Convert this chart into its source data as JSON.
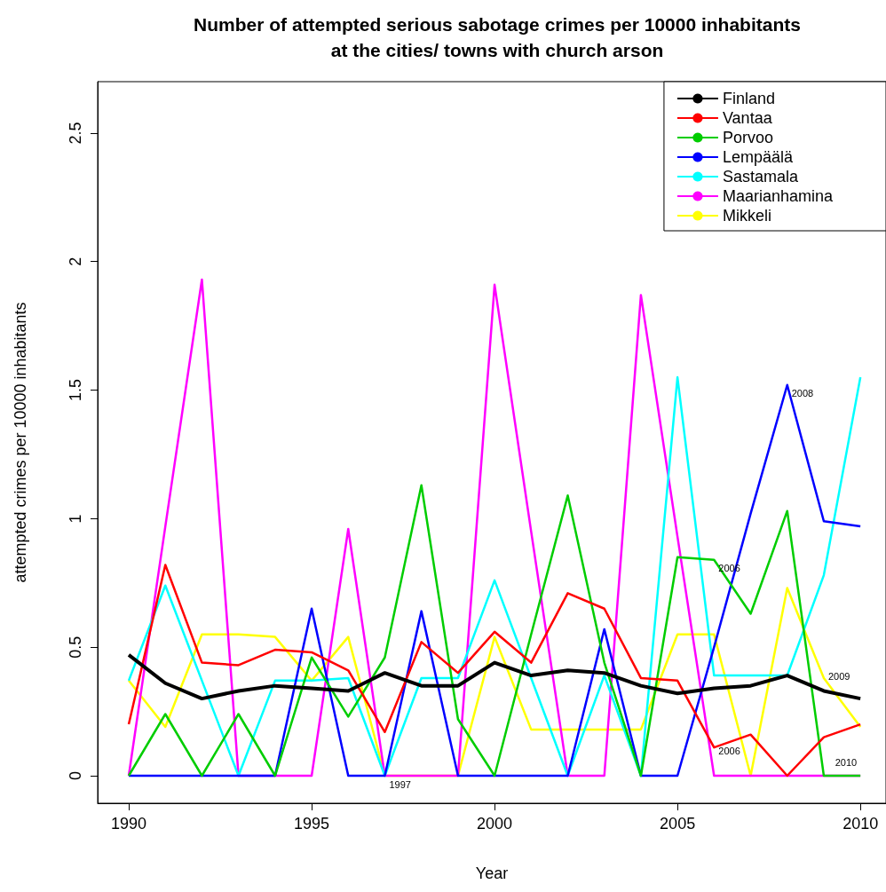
{
  "chart_data": {
    "type": "line",
    "title": "Number of attempted serious sabotage crimes per 10000 inhabitants\nat the cities/ towns with church arson",
    "xlabel": "Year",
    "ylabel": "attempted crimes per 10000 inhabitants",
    "x": [
      1990,
      1991,
      1992,
      1993,
      1994,
      1995,
      1996,
      1997,
      1998,
      1999,
      2000,
      2001,
      2002,
      2003,
      2004,
      2005,
      2006,
      2007,
      2008,
      2009,
      2010
    ],
    "series": [
      {
        "name": "Finland",
        "color": "#000000",
        "values": [
          0.47,
          0.36,
          0.3,
          0.33,
          0.35,
          0.34,
          0.33,
          0.4,
          0.35,
          0.35,
          0.44,
          0.39,
          0.41,
          0.4,
          0.35,
          0.32,
          0.34,
          0.35,
          0.39,
          0.33,
          0.3
        ]
      },
      {
        "name": "Vantaa",
        "color": "#ff0000",
        "values": [
          0.2,
          0.82,
          0.44,
          0.43,
          0.49,
          0.48,
          0.41,
          0.17,
          0.52,
          0.4,
          0.56,
          0.44,
          0.71,
          0.65,
          0.38,
          0.37,
          0.11,
          0.16,
          0,
          0.15,
          0.2
        ]
      },
      {
        "name": "Porvoo",
        "color": "#00cd00",
        "values": [
          0,
          0.24,
          0,
          0.24,
          0,
          0.46,
          0.23,
          0.46,
          1.13,
          0.22,
          0,
          0.55,
          1.09,
          0.44,
          0,
          0.85,
          0.84,
          0.63,
          1.03,
          0,
          0
        ]
      },
      {
        "name": "Lempäälä",
        "color": "#0000ff",
        "values": [
          0,
          0,
          0,
          0,
          0,
          0.65,
          0,
          0,
          0.64,
          0,
          0,
          0,
          0,
          0.57,
          0,
          0,
          0.5,
          1.02,
          1.52,
          0.99,
          0.97
        ]
      },
      {
        "name": "Sastamala",
        "color": "#00ffff",
        "values": [
          0.37,
          0.74,
          0.37,
          0,
          0.37,
          0.37,
          0.38,
          0,
          0.38,
          0.38,
          0.76,
          0.38,
          0,
          0.39,
          0,
          1.55,
          0.39,
          0.39,
          0.39,
          0.78,
          1.55
        ]
      },
      {
        "name": "Maarianhamina",
        "color": "#ff00ff",
        "values": [
          0,
          0.97,
          1.93,
          0,
          0,
          0,
          0.96,
          0,
          0,
          0,
          1.91,
          0.95,
          0,
          0,
          1.87,
          0.93,
          0,
          0,
          0,
          0,
          0
        ]
      },
      {
        "name": "Mikkeli",
        "color": "#ffff00",
        "values": [
          0.37,
          0.19,
          0.55,
          0.55,
          0.54,
          0.37,
          0.54,
          0,
          0,
          0,
          0.54,
          0.18,
          0.18,
          0.18,
          0.18,
          0.55,
          0.55,
          0,
          0.73,
          0.38,
          0.19
        ]
      }
    ],
    "annotations": [
      {
        "text": "1997",
        "x": 1997,
        "y": 0
      },
      {
        "text": "2006",
        "x": 2006,
        "y": 0.84
      },
      {
        "text": "2006",
        "x": 2006,
        "y": 0.13
      },
      {
        "text": "2008",
        "x": 2008,
        "y": 1.52
      },
      {
        "text": "2009",
        "x": 2009,
        "y": 0.42
      },
      {
        "text": "2010",
        "x": 2010,
        "y": 0.02
      }
    ],
    "xlim": [
      1989.15,
      2010.7
    ],
    "xticks": [
      1990,
      1995,
      2000,
      2005,
      2010
    ],
    "ylim": [
      -0.107,
      2.7
    ],
    "yticks": [
      0,
      0.5,
      1,
      1.5,
      2,
      2.5
    ],
    "legend": "top right",
    "marker": "none",
    "line_style": "solid",
    "grid": false
  }
}
